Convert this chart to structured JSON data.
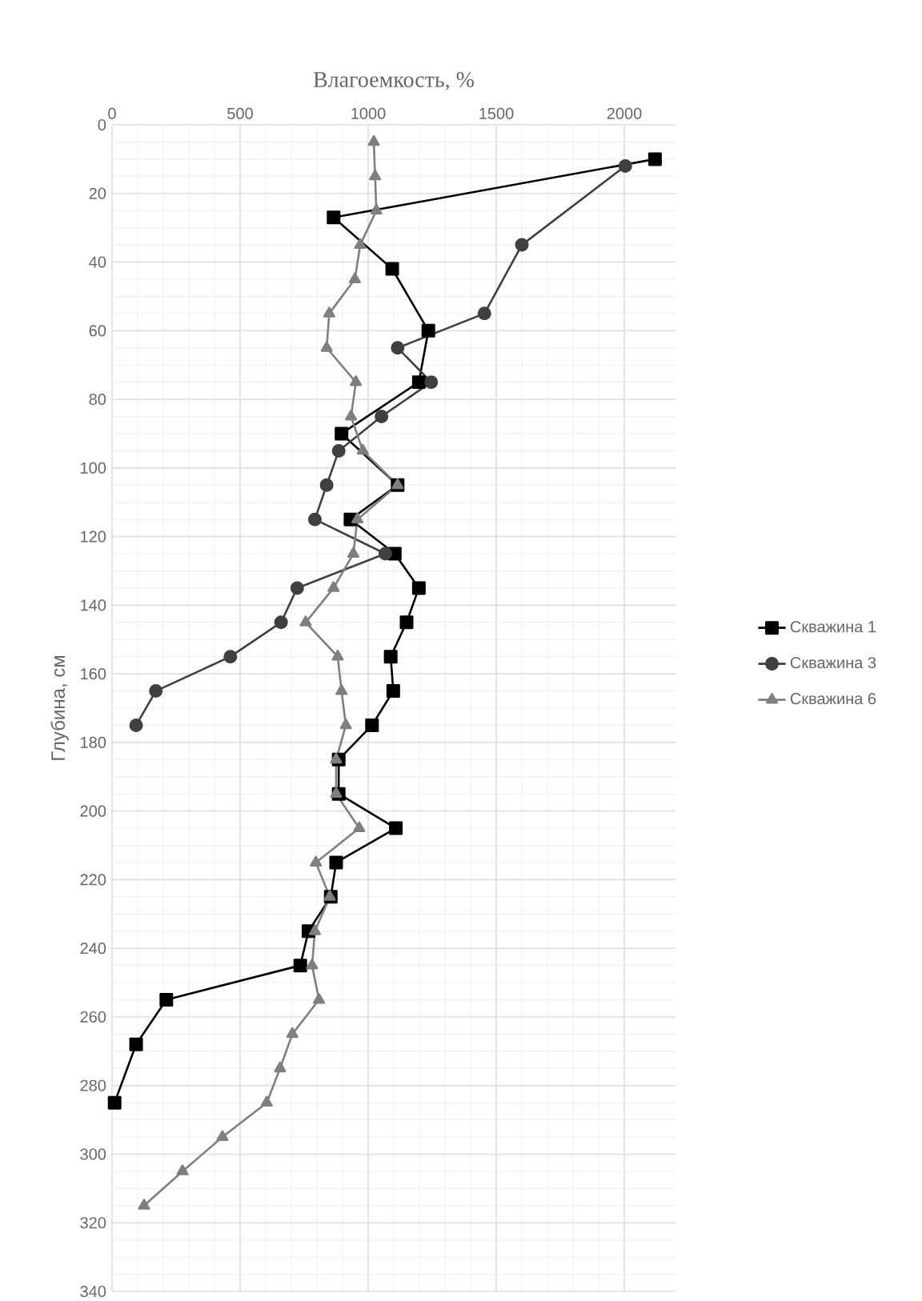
{
  "chart_data": {
    "type": "line",
    "xlabel": "Влагоемкость, %",
    "ylabel": "Глубина, см",
    "xlim": [
      0,
      2200
    ],
    "ylim": [
      340,
      0
    ],
    "xticks": [
      0,
      500,
      1000,
      1500,
      2000
    ],
    "yticks": [
      0,
      20,
      40,
      60,
      80,
      100,
      120,
      140,
      160,
      180,
      200,
      220,
      240,
      260,
      280,
      300,
      320,
      340
    ],
    "grid": true,
    "legend": "right",
    "series": [
      {
        "name": "Скважина 1",
        "color": "#000000",
        "marker": "square",
        "x": [
          2120,
          865,
          1094,
          1235,
          1198,
          896,
          1115,
          931,
          1104,
          1198,
          1150,
          1088,
          1098,
          1015,
          885,
          885,
          1108,
          875,
          854,
          767,
          735,
          212,
          94,
          10
        ],
        "values": [
          10,
          27,
          42,
          60,
          75,
          90,
          105,
          115,
          125,
          135,
          145,
          155,
          165,
          175,
          185,
          195,
          205,
          215,
          225,
          235,
          245,
          255,
          268,
          285
        ]
      },
      {
        "name": "Скважина 3",
        "color": "#404040",
        "marker": "circle",
        "x": [
          2004,
          1600,
          1454,
          1115,
          1246,
          1052,
          885,
          838,
          792,
          1067,
          723,
          660,
          462,
          171,
          94
        ],
        "values": [
          12,
          35,
          55,
          65,
          75,
          85,
          95,
          105,
          115,
          125,
          135,
          145,
          155,
          165,
          175
        ]
      },
      {
        "name": "Скважина 6",
        "color": "#7f7f7f",
        "marker": "triangle",
        "x": [
          1022,
          1027,
          1032,
          969,
          948,
          848,
          838,
          952,
          933,
          979,
          1115,
          958,
          942,
          865,
          756,
          881,
          896,
          913,
          875,
          875,
          965,
          796,
          850,
          792,
          781,
          808,
          704,
          656,
          604,
          431,
          275,
          125
        ],
        "values": [
          5,
          15,
          25,
          35,
          45,
          55,
          65,
          75,
          85,
          95,
          105,
          115,
          125,
          135,
          145,
          155,
          165,
          175,
          185,
          195,
          205,
          215,
          225,
          235,
          245,
          255,
          265,
          275,
          285,
          295,
          305,
          315
        ]
      }
    ]
  }
}
